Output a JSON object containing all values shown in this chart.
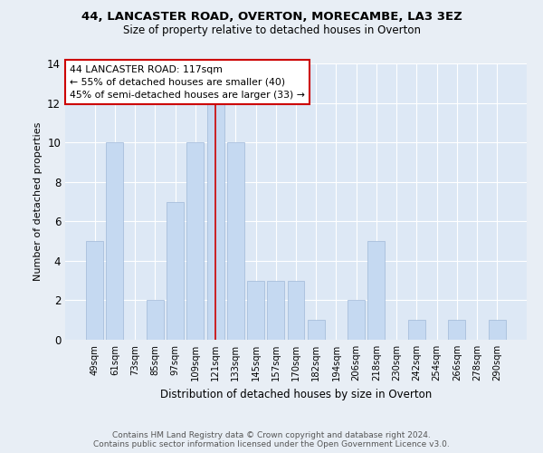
{
  "title": "44, LANCASTER ROAD, OVERTON, MORECAMBE, LA3 3EZ",
  "subtitle": "Size of property relative to detached houses in Overton",
  "xlabel": "Distribution of detached houses by size in Overton",
  "ylabel": "Number of detached properties",
  "categories": [
    "49sqm",
    "61sqm",
    "73sqm",
    "85sqm",
    "97sqm",
    "109sqm",
    "121sqm",
    "133sqm",
    "145sqm",
    "157sqm",
    "170sqm",
    "182sqm",
    "194sqm",
    "206sqm",
    "218sqm",
    "230sqm",
    "242sqm",
    "254sqm",
    "266sqm",
    "278sqm",
    "290sqm"
  ],
  "values": [
    5,
    10,
    0,
    2,
    7,
    10,
    12,
    10,
    3,
    3,
    3,
    1,
    0,
    2,
    5,
    0,
    1,
    0,
    1,
    0,
    1
  ],
  "bar_color": "#c5d9f1",
  "bar_edgecolor": "#a0b8d8",
  "vline_color": "#cc0000",
  "annotation_text": "44 LANCASTER ROAD: 117sqm\n← 55% of detached houses are smaller (40)\n45% of semi-detached houses are larger (33) →",
  "annotation_box_facecolor": "#ffffff",
  "annotation_box_edgecolor": "#cc0000",
  "ylim": [
    0,
    14
  ],
  "yticks": [
    0,
    2,
    4,
    6,
    8,
    10,
    12,
    14
  ],
  "footer1": "Contains HM Land Registry data © Crown copyright and database right 2024.",
  "footer2": "Contains public sector information licensed under the Open Government Licence v3.0.",
  "fig_facecolor": "#e8eef5",
  "plot_facecolor": "#dde8f5"
}
